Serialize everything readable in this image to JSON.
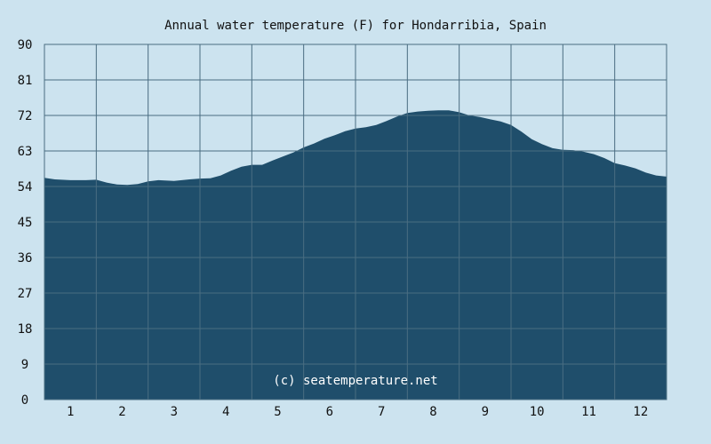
{
  "chart_data": {
    "type": "area",
    "title": "Annual water temperature (F) for Hondarribia, Spain",
    "xlabel": "",
    "ylabel": "",
    "x_ticks": [
      "1",
      "2",
      "3",
      "4",
      "5",
      "6",
      "7",
      "8",
      "9",
      "10",
      "11",
      "12"
    ],
    "y_ticks": [
      "0",
      "9",
      "18",
      "27",
      "36",
      "45",
      "54",
      "63",
      "72",
      "81",
      "90"
    ],
    "ylim": [
      0,
      90
    ],
    "xlim": [
      0.5,
      12.5
    ],
    "grid": true,
    "watermark": "(c) seatemperature.net",
    "series": [
      {
        "x": [
          0.5,
          0.7,
          1.0,
          1.3,
          1.5,
          1.7,
          1.9,
          2.1,
          2.3,
          2.5,
          2.7,
          3.0,
          3.3,
          3.5,
          3.7,
          3.9,
          4.1,
          4.3,
          4.5,
          4.7,
          4.9,
          5.1,
          5.3,
          5.5,
          5.7,
          5.9,
          6.1,
          6.3,
          6.5,
          6.7,
          6.9,
          7.1,
          7.3,
          7.5,
          7.7,
          7.9,
          8.1,
          8.3,
          8.5,
          8.7,
          8.9,
          9.1,
          9.3,
          9.5,
          9.7,
          9.9,
          10.1,
          10.3,
          10.5,
          10.7,
          10.9,
          11.1,
          11.3,
          11.5,
          11.7,
          11.9,
          12.1,
          12.3,
          12.5
        ],
        "values": [
          56.2,
          55.8,
          55.6,
          55.6,
          55.7,
          55.0,
          54.5,
          54.4,
          54.6,
          55.3,
          55.6,
          55.4,
          55.8,
          56.0,
          56.1,
          56.8,
          58.0,
          59.0,
          59.5,
          59.5,
          60.6,
          61.6,
          62.6,
          63.9,
          64.9,
          66.1,
          67.0,
          68.0,
          68.7,
          69.0,
          69.6,
          70.6,
          71.7,
          72.6,
          73.0,
          73.2,
          73.3,
          73.3,
          72.8,
          72.0,
          71.6,
          71.0,
          70.5,
          69.6,
          67.9,
          66.0,
          64.7,
          63.7,
          63.3,
          63.2,
          62.8,
          62.2,
          61.2,
          59.9,
          59.3,
          58.6,
          57.5,
          56.8,
          56.5
        ],
        "color": "#1f4e6b"
      }
    ]
  }
}
